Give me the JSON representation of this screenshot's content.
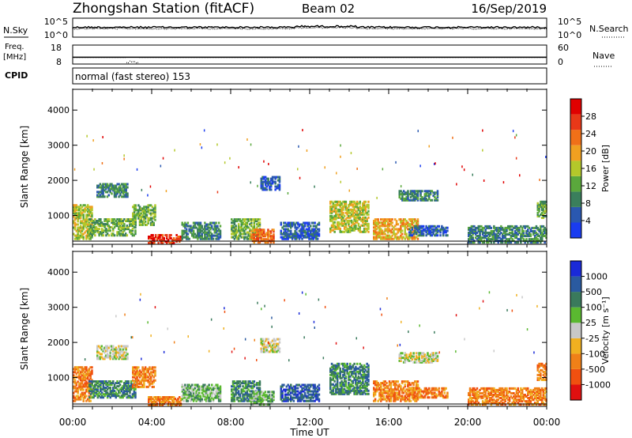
{
  "header": {
    "title": "Zhongshan Station (fitACF)",
    "beam": "Beam 02",
    "date": "16/Sep/2019"
  },
  "noise_panel": {
    "left_label": "N.Sky",
    "right_label": "N.Search",
    "left_ticks": [
      "10^5",
      "10^0"
    ],
    "right_ticks": [
      "10^5",
      "10^0"
    ]
  },
  "freq_panel": {
    "left_label_1": "Freq.",
    "left_label_2": "[MHz]",
    "right_label": "Nave",
    "left_ticks": [
      "18",
      "8"
    ],
    "right_ticks": [
      "60",
      "0"
    ],
    "freq_mhz": 11.6,
    "nave_baseline": 22,
    "nave_dip": {
      "start_hour": 2.7,
      "end_hour": 3.3,
      "min": 3
    }
  },
  "cpid": {
    "label": "CPID",
    "text": "normal (fast stereo) 153"
  },
  "colors": {
    "power": [
      "#1a3cf0",
      "#2a58b0",
      "#3a7f5c",
      "#5aa83c",
      "#b4c82a",
      "#f0a020",
      "#f07018",
      "#e83818",
      "#e00000"
    ],
    "velocity": [
      "#e01010",
      "#f05010",
      "#f08018",
      "#f0b020",
      "#c8c8c8",
      "#5ab830",
      "#3a7a5c",
      "#2a5aa0",
      "#1a2ad8"
    ]
  },
  "chart_data": [
    {
      "type": "heatmap",
      "name": "power",
      "xlabel": "",
      "ylabel": "Slant Range [km]",
      "colorbar_label": "Power [dB]",
      "colorbar_ticks": [
        "4",
        "8",
        "12",
        "16",
        "20",
        "24",
        "28"
      ],
      "xlim": [
        0,
        24
      ],
      "ylim": [
        180,
        4500
      ],
      "yticks": [
        "1000",
        "2000",
        "3000",
        "4000"
      ],
      "xticks": [
        "00:00",
        "04:00",
        "08:00",
        "12:00",
        "16:00",
        "20:00",
        "00:00"
      ],
      "echo_regions": [
        {
          "t0": 0.0,
          "t1": 1.0,
          "r0": 300,
          "r1": 1300,
          "level": 4
        },
        {
          "t0": 0.8,
          "t1": 3.2,
          "r0": 400,
          "r1": 900,
          "level": 3
        },
        {
          "t0": 1.2,
          "t1": 2.8,
          "r0": 1500,
          "r1": 1900,
          "level": 2
        },
        {
          "t0": 3.0,
          "t1": 4.2,
          "r0": 700,
          "r1": 1300,
          "level": 3
        },
        {
          "t0": 3.8,
          "t1": 5.5,
          "r0": 180,
          "r1": 450,
          "level": 7
        },
        {
          "t0": 5.5,
          "t1": 7.5,
          "r0": 300,
          "r1": 800,
          "level": 2
        },
        {
          "t0": 8.0,
          "t1": 9.5,
          "r0": 300,
          "r1": 900,
          "level": 3
        },
        {
          "t0": 9.0,
          "t1": 10.2,
          "r0": 200,
          "r1": 600,
          "level": 6
        },
        {
          "t0": 9.5,
          "t1": 10.5,
          "r0": 1700,
          "r1": 2100,
          "level": 1
        },
        {
          "t0": 10.5,
          "t1": 12.5,
          "r0": 300,
          "r1": 800,
          "level": 1
        },
        {
          "t0": 13.0,
          "t1": 15.0,
          "r0": 500,
          "r1": 1400,
          "level": 4
        },
        {
          "t0": 15.2,
          "t1": 17.5,
          "r0": 300,
          "r1": 900,
          "level": 5
        },
        {
          "t0": 17.0,
          "t1": 19.0,
          "r0": 400,
          "r1": 700,
          "level": 1
        },
        {
          "t0": 16.5,
          "t1": 18.5,
          "r0": 1400,
          "r1": 1700,
          "level": 2
        },
        {
          "t0": 20.0,
          "t1": 24.0,
          "r0": 200,
          "r1": 700,
          "level": 2
        },
        {
          "t0": 23.5,
          "t1": 24.0,
          "r0": 900,
          "r1": 1400,
          "level": 3
        }
      ]
    },
    {
      "type": "heatmap",
      "name": "velocity",
      "xlabel": "Time UT",
      "ylabel": "Slant Range [km]",
      "colorbar_label": "Velocity [m s⁻¹]",
      "colorbar_ticks": [
        "-1000",
        "-500",
        "-100",
        "-25",
        "25",
        "100",
        "500",
        "1000"
      ],
      "xlim": [
        0,
        24
      ],
      "ylim": [
        180,
        4500
      ],
      "yticks": [
        "1000",
        "2000",
        "3000",
        "4000"
      ],
      "xticks": [
        "00:00",
        "04:00",
        "08:00",
        "12:00",
        "16:00",
        "20:00",
        "00:00"
      ],
      "echo_regions": [
        {
          "t0": 0.0,
          "t1": 1.0,
          "r0": 300,
          "r1": 1300,
          "level": 2
        },
        {
          "t0": 0.8,
          "t1": 3.2,
          "r0": 400,
          "r1": 900,
          "level": 6
        },
        {
          "t0": 1.2,
          "t1": 2.8,
          "r0": 1500,
          "r1": 1900,
          "level": 4
        },
        {
          "t0": 3.0,
          "t1": 4.2,
          "r0": 700,
          "r1": 1300,
          "level": 2
        },
        {
          "t0": 3.8,
          "t1": 5.5,
          "r0": 180,
          "r1": 450,
          "level": 2
        },
        {
          "t0": 5.5,
          "t1": 7.5,
          "r0": 300,
          "r1": 800,
          "level": 5
        },
        {
          "t0": 8.0,
          "t1": 9.5,
          "r0": 300,
          "r1": 900,
          "level": 6
        },
        {
          "t0": 9.0,
          "t1": 10.2,
          "r0": 200,
          "r1": 600,
          "level": 5
        },
        {
          "t0": 9.5,
          "t1": 10.5,
          "r0": 1700,
          "r1": 2100,
          "level": 4
        },
        {
          "t0": 10.5,
          "t1": 12.5,
          "r0": 300,
          "r1": 800,
          "level": 7
        },
        {
          "t0": 13.0,
          "t1": 15.0,
          "r0": 500,
          "r1": 1400,
          "level": 6
        },
        {
          "t0": 15.2,
          "t1": 17.5,
          "r0": 300,
          "r1": 900,
          "level": 2
        },
        {
          "t0": 17.0,
          "t1": 19.0,
          "r0": 400,
          "r1": 700,
          "level": 2
        },
        {
          "t0": 16.5,
          "t1": 18.5,
          "r0": 1400,
          "r1": 1700,
          "level": 4
        },
        {
          "t0": 20.0,
          "t1": 24.0,
          "r0": 200,
          "r1": 700,
          "level": 2
        },
        {
          "t0": 23.5,
          "t1": 24.0,
          "r0": 900,
          "r1": 1400,
          "level": 2
        }
      ]
    }
  ]
}
